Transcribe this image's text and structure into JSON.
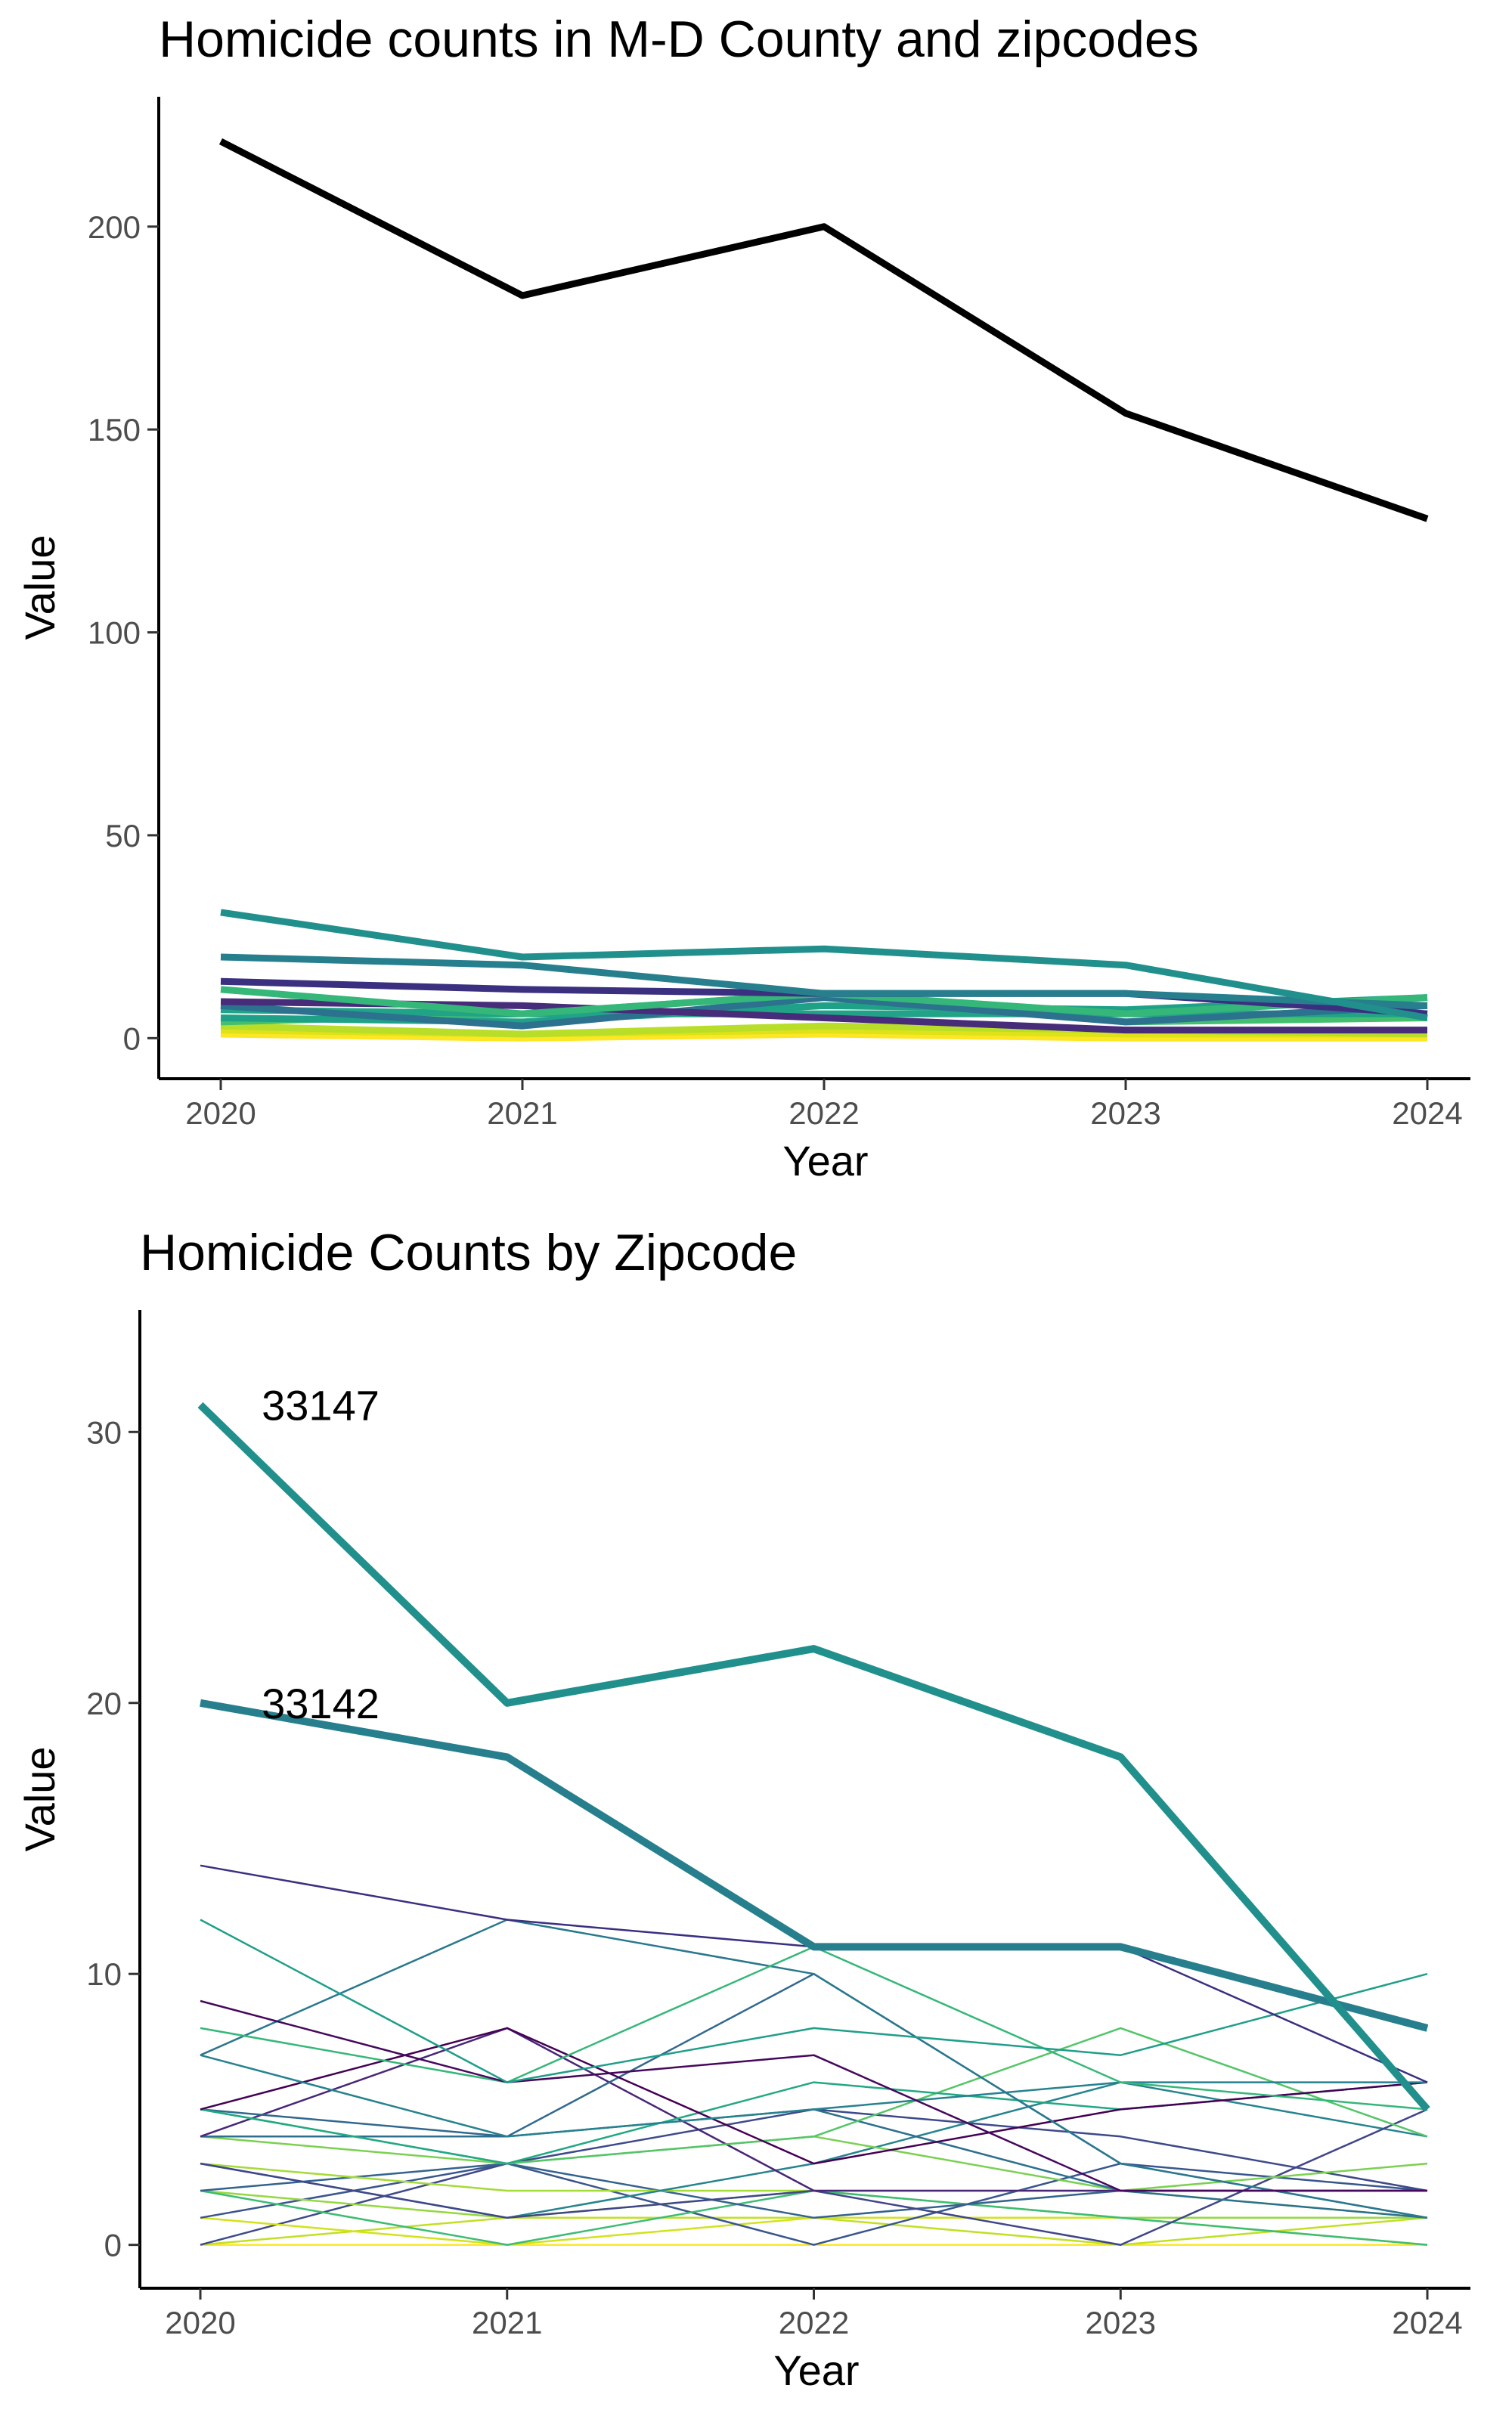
{
  "chart_data": [
    {
      "type": "line",
      "title": "Homicide counts in M-D County and zipcodes",
      "xlabel": "Year",
      "ylabel": "Value",
      "x": [
        2020,
        2021,
        2022,
        2023,
        2024
      ],
      "xticks": [
        "2020",
        "2021",
        "2022",
        "2023",
        "2024"
      ],
      "yticks": [
        "0",
        "50",
        "100",
        "150",
        "200"
      ],
      "ylim": [
        -10,
        232
      ],
      "grid": false,
      "legend": "none",
      "county_series": {
        "values": [
          221,
          183,
          200,
          154,
          128
        ],
        "color": "#000000"
      },
      "zip_series": [
        {
          "values": [
            31,
            20,
            22,
            18,
            5
          ],
          "color": "#21908d"
        },
        {
          "values": [
            20,
            18,
            11,
            11,
            8
          ],
          "color": "#277f8e"
        },
        {
          "values": [
            14,
            12,
            11,
            11,
            6
          ],
          "color": "#3b2f80"
        },
        {
          "values": [
            12,
            6,
            11,
            6,
            10
          ],
          "color": "#35b779"
        },
        {
          "values": [
            9,
            8,
            5,
            2,
            2
          ],
          "color": "#472c7a"
        },
        {
          "values": [
            8,
            3,
            10,
            4,
            8
          ],
          "color": "#2c718e"
        },
        {
          "values": [
            7,
            6,
            6,
            6,
            6
          ],
          "color": "#20a386"
        },
        {
          "values": [
            5,
            4,
            8,
            7,
            10
          ],
          "color": "#1fa187"
        },
        {
          "values": [
            4,
            6,
            11,
            4,
            5
          ],
          "color": "#44bf70"
        },
        {
          "values": [
            3,
            1,
            3,
            2,
            1
          ],
          "color": "#b8de29"
        },
        {
          "values": [
            2,
            1,
            2,
            1,
            1
          ],
          "color": "#dde318"
        },
        {
          "values": [
            1,
            0,
            1,
            0,
            0
          ],
          "color": "#fde725"
        }
      ]
    },
    {
      "type": "line",
      "title": "Homicide Counts by Zipcode",
      "xlabel": "Year",
      "ylabel": "Value",
      "x": [
        2020,
        2021,
        2022,
        2023,
        2024
      ],
      "xticks": [
        "2020",
        "2021",
        "2022",
        "2023",
        "2024"
      ],
      "yticks": [
        "0",
        "10",
        "20",
        "30"
      ],
      "ylim": [
        -1.6,
        34.5
      ],
      "grid": false,
      "legend": "none",
      "highlight_series": [
        {
          "name": "33147",
          "values": [
            31,
            20,
            22,
            18,
            5
          ],
          "color": "#21908d"
        },
        {
          "name": "33142",
          "values": [
            20,
            18,
            11,
            11,
            8
          ],
          "color": "#277f8e"
        }
      ],
      "series": [
        {
          "values": [
            14,
            12,
            11,
            11,
            6
          ],
          "color": "#3b2f80"
        },
        {
          "values": [
            12,
            6,
            8,
            7,
            10
          ],
          "color": "#1f9e89"
        },
        {
          "values": [
            9,
            6,
            7,
            2,
            2
          ],
          "color": "#46085c"
        },
        {
          "values": [
            8,
            6,
            11,
            6,
            5
          ],
          "color": "#35b779"
        },
        {
          "values": [
            7,
            12,
            10,
            3,
            1
          ],
          "color": "#2a788e"
        },
        {
          "values": [
            7,
            4,
            5,
            6,
            6
          ],
          "color": "#26828e"
        },
        {
          "values": [
            5,
            8,
            3,
            5,
            6
          ],
          "color": "#440154"
        },
        {
          "values": [
            5,
            3,
            6,
            5,
            6
          ],
          "color": "#22a884"
        },
        {
          "values": [
            5,
            4,
            10,
            3,
            1
          ],
          "color": "#31688e"
        },
        {
          "values": [
            5,
            3,
            4,
            8,
            4
          ],
          "color": "#54c568"
        },
        {
          "values": [
            4,
            8,
            2,
            2,
            2
          ],
          "color": "#482677"
        },
        {
          "values": [
            4,
            4,
            5,
            2,
            1
          ],
          "color": "#2d708e"
        },
        {
          "values": [
            4,
            3,
            4,
            2,
            3
          ],
          "color": "#7ad151"
        },
        {
          "values": [
            3,
            1,
            2,
            0,
            5
          ],
          "color": "#404688"
        },
        {
          "values": [
            3,
            1,
            3,
            6,
            4
          ],
          "color": "#25848e"
        },
        {
          "values": [
            3,
            2,
            2,
            2,
            1
          ],
          "color": "#a5db36"
        },
        {
          "values": [
            2,
            3,
            1,
            2,
            2
          ],
          "color": "#33638d"
        },
        {
          "values": [
            2,
            0,
            2,
            1,
            0
          ],
          "color": "#3dbc74"
        },
        {
          "values": [
            2,
            1,
            2,
            1,
            1
          ],
          "color": "#95d840"
        },
        {
          "values": [
            1,
            3,
            0,
            3,
            2
          ],
          "color": "#39568c"
        },
        {
          "values": [
            1,
            0,
            1,
            1,
            0
          ],
          "color": "#d2e21b"
        },
        {
          "values": [
            0,
            3,
            5,
            4,
            2
          ],
          "color": "#3e4a89"
        },
        {
          "values": [
            0,
            1,
            1,
            0,
            1
          ],
          "color": "#c2df23"
        },
        {
          "values": [
            0,
            0,
            0,
            0,
            0
          ],
          "color": "#fde725"
        }
      ],
      "annotations": [
        {
          "text": "33147",
          "x": 2020.2,
          "y": 31
        },
        {
          "text": "33142",
          "x": 2020.2,
          "y": 20
        }
      ]
    }
  ]
}
